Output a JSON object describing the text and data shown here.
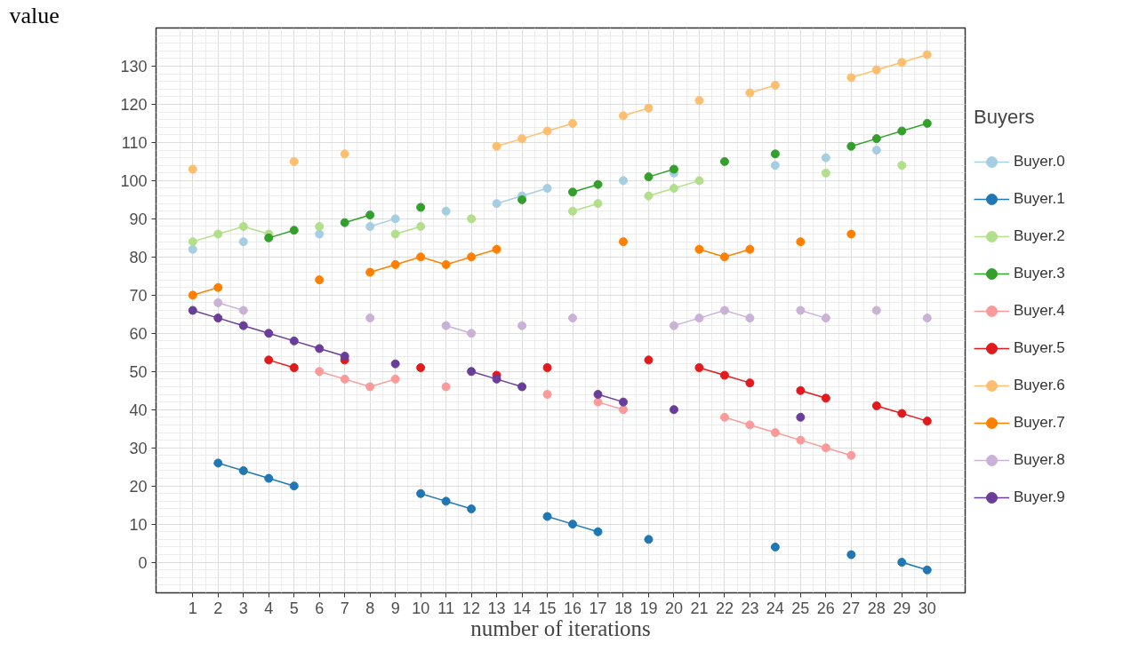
{
  "chart_data": {
    "type": "line",
    "xlabel": "number of iterations",
    "ylabel": "value",
    "legend_title": "Buyers",
    "x": [
      1,
      2,
      3,
      4,
      5,
      6,
      7,
      8,
      9,
      10,
      11,
      12,
      13,
      14,
      15,
      16,
      17,
      18,
      19,
      20,
      21,
      22,
      23,
      24,
      25,
      26,
      27,
      28,
      29,
      30
    ],
    "xlim": [
      -0.45,
      31.5
    ],
    "xticks": [
      1,
      2,
      3,
      4,
      5,
      6,
      7,
      8,
      9,
      10,
      11,
      12,
      13,
      14,
      15,
      16,
      17,
      18,
      19,
      20,
      21,
      22,
      23,
      24,
      25,
      26,
      27,
      28,
      29,
      30
    ],
    "ylim": [
      -8,
      140
    ],
    "yticks": [
      0,
      10,
      20,
      30,
      40,
      50,
      60,
      70,
      80,
      90,
      100,
      110,
      120,
      130
    ],
    "grid": true,
    "legend": "right",
    "marker": "circle",
    "line_style": "solid",
    "series": [
      {
        "name": "Buyer.0",
        "color": "#a6cee3",
        "values": [
          82,
          null,
          84,
          null,
          null,
          86,
          null,
          88,
          90,
          null,
          92,
          null,
          94,
          96,
          98,
          null,
          null,
          100,
          null,
          102,
          null,
          null,
          null,
          104,
          null,
          106,
          null,
          108,
          null,
          null
        ]
      },
      {
        "name": "Buyer.1",
        "color": "#1f78b4",
        "values": [
          null,
          26,
          24,
          22,
          20,
          null,
          null,
          null,
          null,
          18,
          16,
          14,
          null,
          null,
          12,
          10,
          8,
          null,
          6,
          null,
          null,
          null,
          null,
          4,
          null,
          null,
          2,
          null,
          0,
          -2
        ]
      },
      {
        "name": "Buyer.2",
        "color": "#b2df8a",
        "values": [
          84,
          86,
          88,
          86,
          null,
          88,
          null,
          null,
          86,
          88,
          null,
          90,
          null,
          null,
          null,
          92,
          94,
          null,
          96,
          98,
          100,
          null,
          null,
          null,
          null,
          102,
          null,
          null,
          104,
          null
        ]
      },
      {
        "name": "Buyer.3",
        "color": "#33a02c",
        "values": [
          null,
          null,
          null,
          85,
          87,
          null,
          89,
          91,
          null,
          93,
          null,
          null,
          null,
          95,
          null,
          97,
          99,
          null,
          101,
          103,
          null,
          105,
          null,
          107,
          null,
          null,
          109,
          111,
          113,
          115
        ]
      },
      {
        "name": "Buyer.4",
        "color": "#fb9a99",
        "values": [
          null,
          null,
          null,
          null,
          null,
          50,
          48,
          46,
          48,
          null,
          46,
          null,
          null,
          null,
          44,
          null,
          42,
          40,
          null,
          null,
          null,
          38,
          36,
          34,
          32,
          30,
          28,
          null,
          null,
          null
        ]
      },
      {
        "name": "Buyer.5",
        "color": "#e31a1c",
        "values": [
          null,
          null,
          null,
          53,
          51,
          null,
          53,
          null,
          null,
          51,
          null,
          null,
          49,
          null,
          51,
          null,
          null,
          null,
          53,
          null,
          51,
          49,
          47,
          null,
          45,
          43,
          null,
          41,
          39,
          37
        ]
      },
      {
        "name": "Buyer.6",
        "color": "#fdbf6f",
        "values": [
          103,
          null,
          null,
          null,
          105,
          null,
          107,
          null,
          null,
          null,
          null,
          null,
          109,
          111,
          113,
          115,
          null,
          117,
          119,
          null,
          121,
          null,
          123,
          125,
          null,
          null,
          127,
          129,
          131,
          133
        ]
      },
      {
        "name": "Buyer.7",
        "color": "#ff7f00",
        "values": [
          70,
          72,
          null,
          null,
          null,
          74,
          null,
          76,
          78,
          80,
          78,
          80,
          82,
          null,
          null,
          null,
          null,
          84,
          null,
          null,
          82,
          80,
          82,
          null,
          84,
          null,
          86,
          null,
          null,
          null
        ]
      },
      {
        "name": "Buyer.8",
        "color": "#cab2d6",
        "values": [
          null,
          68,
          66,
          null,
          null,
          null,
          null,
          64,
          null,
          null,
          62,
          60,
          null,
          62,
          null,
          64,
          null,
          null,
          null,
          62,
          64,
          66,
          64,
          null,
          66,
          64,
          null,
          66,
          null,
          64
        ]
      },
      {
        "name": "Buyer.9",
        "color": "#6a3d9a",
        "values": [
          66,
          64,
          62,
          60,
          58,
          56,
          54,
          null,
          52,
          null,
          null,
          50,
          48,
          46,
          null,
          null,
          44,
          42,
          null,
          40,
          null,
          null,
          null,
          null,
          38,
          null,
          null,
          null,
          null,
          null
        ]
      }
    ]
  }
}
